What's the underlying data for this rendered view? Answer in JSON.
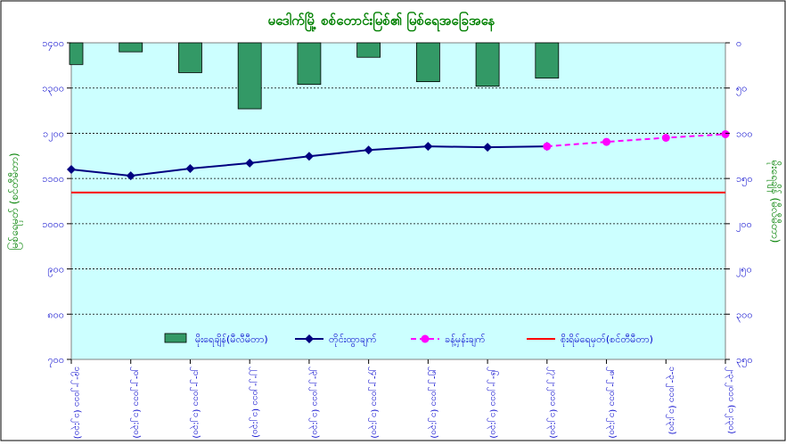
{
  "chart_data": {
    "type": "bar+line",
    "title": "မဒေါက်မြို့ စစ်တောင်းမြစ်၏ မြစ်ရေအခြေအနေ",
    "ylabel_left": "မြစ်ရေမှတ် (စင်တီမီတာ)",
    "ylabel_right": "မိုးရေချိန် (မီလီမီတာ)",
    "categories": [
      "၁၉-၂-၂၀၁၁ (၁၂:၃၀)",
      "၂၀-၂-၂၀၁၁ (၁၂:၃၀)",
      "၂၁-၂-၂၀၁၁ (၁၂:၃၀)",
      "၂၂-၂-၂၀၁၁ (၁၂:၃၀)",
      "၂၃-၂-၂၀၁၁ (၁၂:၃၀)",
      "၂၄-၂-၂၀၁၁ (၁၂:၃၀)",
      "၂၅-၂-၂၀၁၁ (၁၂:၃၀)",
      "၂၆-၂-၂၀၁၁ (၁၂:၃၀)",
      "၂၇-၂-၂၀၁၁ (၁၂:၃၀)",
      "၂၈-၂-၂၀၁၁ (၁၂:၃၀)",
      "၁-၃-၂၀၁၁ (၁၂:၃၀)",
      "၂-၃-၂၀၁၁ (၁၂:၃၀)"
    ],
    "left_axis": {
      "min": 700,
      "max": 1400,
      "ticks": [
        {
          "value": 700,
          "label": "၇၀၀"
        },
        {
          "value": 800,
          "label": "၈၀၀"
        },
        {
          "value": 900,
          "label": "၉၀၀"
        },
        {
          "value": 1000,
          "label": "၁၀၀၀"
        },
        {
          "value": 1100,
          "label": "၁၁၀၀"
        },
        {
          "value": 1200,
          "label": "၁၂၀၀"
        },
        {
          "value": 1300,
          "label": "၁၃၀၀"
        },
        {
          "value": 1400,
          "label": "၁၄၀၀"
        }
      ]
    },
    "right_axis": {
      "min": 0,
      "max": 350,
      "inverted": true,
      "ticks": [
        {
          "value": 0,
          "label": "၀"
        },
        {
          "value": 50,
          "label": "၅၀"
        },
        {
          "value": 100,
          "label": "၁၀၀"
        },
        {
          "value": 150,
          "label": "၁၅၀"
        },
        {
          "value": 200,
          "label": "၂၀၀"
        },
        {
          "value": 250,
          "label": "၂၅၀"
        },
        {
          "value": 300,
          "label": "၃၀၀"
        },
        {
          "value": 350,
          "label": "၃၅၀"
        }
      ]
    },
    "grid": true,
    "legend_position": "bottom-inside",
    "series": [
      {
        "name": "မိုးရေချိန်(မီလီမီတာ)",
        "kind": "bar",
        "axis": "right",
        "color": "#339966",
        "values": [
          24,
          10,
          33,
          73,
          46,
          16,
          43,
          48,
          39,
          null,
          null,
          null
        ]
      },
      {
        "name": "တိုင်းထွာချက်",
        "kind": "line",
        "axis": "left",
        "color": "#000080",
        "values": [
          1120,
          1106,
          1122,
          1134,
          1149,
          1163,
          1171,
          1169,
          1171,
          null,
          null,
          null
        ]
      },
      {
        "name": "ခန့်မှန်းချက်",
        "kind": "line-dashed",
        "axis": "left",
        "color": "#ff00ff",
        "values": [
          null,
          null,
          null,
          null,
          null,
          null,
          null,
          null,
          1171,
          1181,
          1190,
          1198
        ]
      },
      {
        "name": "စိုးရိမ်ရေမှတ်(စင်တီမီတာ)",
        "kind": "reference",
        "axis": "left",
        "color": "#ff0000",
        "value": 1069
      }
    ],
    "colors": {
      "title": "#008000",
      "plot_bg": "#ccffff",
      "axis_text": "#0000cc"
    }
  }
}
